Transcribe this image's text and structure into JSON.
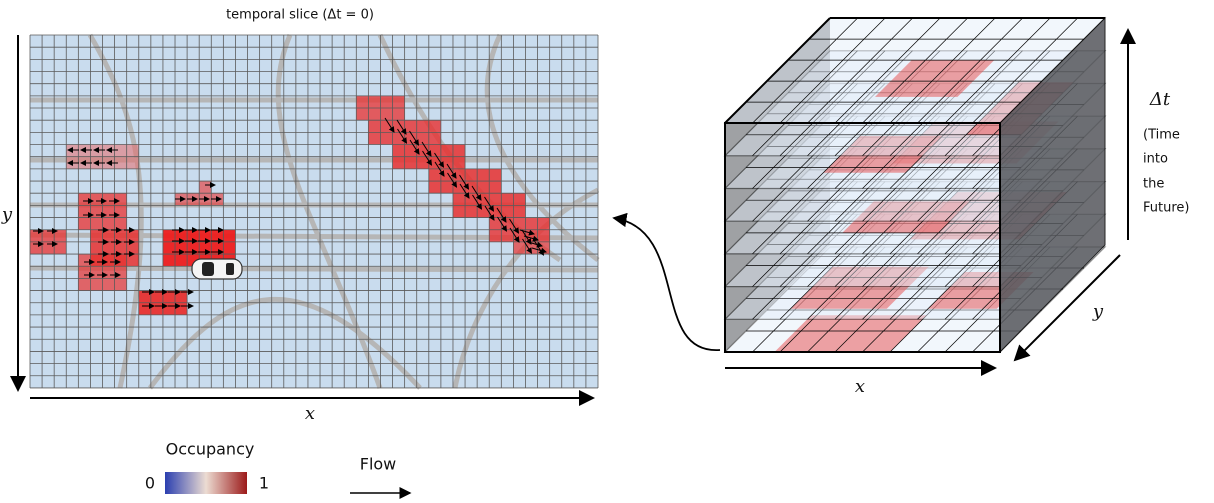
{
  "slice": {
    "title": "temporal slice (Δt = 0)",
    "x_label": "x",
    "y_label": "y"
  },
  "cube": {
    "time_label": "Δt",
    "time_caption": [
      "(Time",
      "into",
      "the",
      "Future)"
    ],
    "x_label": "x",
    "y_label": "y"
  },
  "legend": {
    "occupancy_title": "Occupancy",
    "min": 0,
    "max": 1,
    "flow_title": "Flow"
  }
}
